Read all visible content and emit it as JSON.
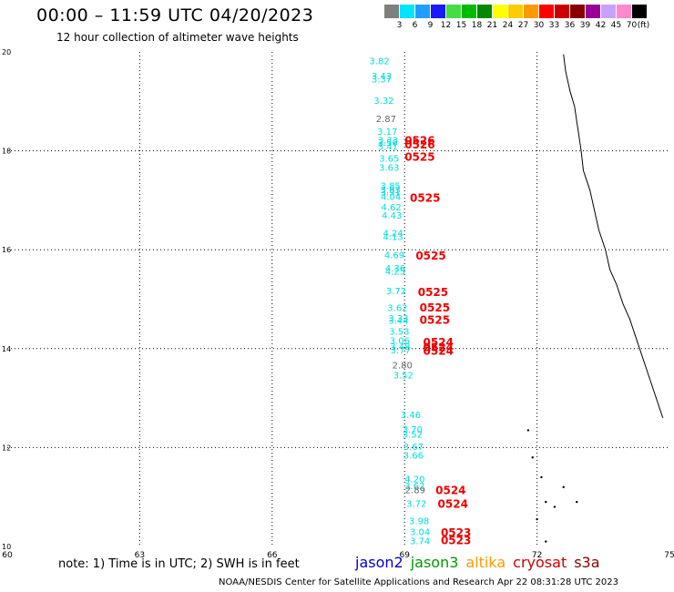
{
  "header": {
    "title": "00:00 – 11:59 UTC 04/20/2023",
    "subtitle": "12 hour collection of altimeter wave heights"
  },
  "legend": {
    "unit": "(ft)",
    "bins": [
      {
        "label": "3",
        "color": "#7f7f7f"
      },
      {
        "label": "6",
        "color": "#00e5ff"
      },
      {
        "label": "9",
        "color": "#1e9fff"
      },
      {
        "label": "12",
        "color": "#1a1aff"
      },
      {
        "label": "15",
        "color": "#44dd44"
      },
      {
        "label": "18",
        "color": "#00bb00"
      },
      {
        "label": "21",
        "color": "#008800"
      },
      {
        "label": "24",
        "color": "#ffff00"
      },
      {
        "label": "27",
        "color": "#ffcc00"
      },
      {
        "label": "30",
        "color": "#ff9900"
      },
      {
        "label": "33",
        "color": "#ff0000"
      },
      {
        "label": "36",
        "color": "#cc0000"
      },
      {
        "label": "39",
        "color": "#880000"
      },
      {
        "label": "42",
        "color": "#990099"
      },
      {
        "label": "45",
        "color": "#c8a0ff"
      },
      {
        "label": "70",
        "color": "#ff88cc"
      },
      {
        "label": "",
        "color": "#000000"
      }
    ]
  },
  "map": {
    "lon_range": [
      60,
      75
    ],
    "lat_range": [
      10,
      20
    ],
    "x_ticks": [
      "60",
      "63",
      "66",
      "69",
      "72",
      "75"
    ],
    "y_ticks": [
      "10",
      "12",
      "14",
      "16",
      "18",
      "20"
    ],
    "grid": "dotted",
    "colors": {
      "cyan": "#00dddd",
      "gray": "#666666",
      "red": "#ee0000"
    },
    "swh_labels": [
      {
        "text": "3.82",
        "lon": 68.2,
        "lat": 19.75,
        "color": "cyan"
      },
      {
        "text": "3.43",
        "lon": 68.25,
        "lat": 19.45,
        "color": "cyan"
      },
      {
        "text": "3.37",
        "lon": 68.25,
        "lat": 19.38,
        "color": "cyan"
      },
      {
        "text": "3.32",
        "lon": 68.3,
        "lat": 18.95,
        "color": "cyan"
      },
      {
        "text": "2.87",
        "lon": 68.35,
        "lat": 18.58,
        "color": "gray"
      },
      {
        "text": "3.17",
        "lon": 68.38,
        "lat": 18.32,
        "color": "cyan"
      },
      {
        "text": "3.33",
        "lon": 68.39,
        "lat": 18.15,
        "color": "cyan"
      },
      {
        "text": "3.56",
        "lon": 68.39,
        "lat": 18.1,
        "color": "cyan"
      },
      {
        "text": "3.41",
        "lon": 68.39,
        "lat": 18.02,
        "color": "cyan"
      },
      {
        "text": "3.65",
        "lon": 68.42,
        "lat": 17.78,
        "color": "cyan"
      },
      {
        "text": "3.63",
        "lon": 68.42,
        "lat": 17.6,
        "color": "cyan"
      },
      {
        "text": "3.85",
        "lon": 68.45,
        "lat": 17.23,
        "color": "cyan"
      },
      {
        "text": "3.93",
        "lon": 68.45,
        "lat": 17.15,
        "color": "cyan"
      },
      {
        "text": "3.91",
        "lon": 68.45,
        "lat": 17.1,
        "color": "cyan"
      },
      {
        "text": "4.04",
        "lon": 68.46,
        "lat": 17.01,
        "color": "cyan"
      },
      {
        "text": "4.62",
        "lon": 68.47,
        "lat": 16.8,
        "color": "cyan"
      },
      {
        "text": "4.43",
        "lon": 68.48,
        "lat": 16.63,
        "color": "cyan"
      },
      {
        "text": "4.24",
        "lon": 68.51,
        "lat": 16.27,
        "color": "cyan"
      },
      {
        "text": "4.13",
        "lon": 68.51,
        "lat": 16.2,
        "color": "cyan"
      },
      {
        "text": "4.69",
        "lon": 68.54,
        "lat": 15.83,
        "color": "cyan"
      },
      {
        "text": "4.36",
        "lon": 68.56,
        "lat": 15.56,
        "color": "cyan"
      },
      {
        "text": "4.25",
        "lon": 68.56,
        "lat": 15.5,
        "color": "cyan"
      },
      {
        "text": "3.72",
        "lon": 68.58,
        "lat": 15.1,
        "color": "cyan"
      },
      {
        "text": "3.62",
        "lon": 68.61,
        "lat": 14.76,
        "color": "cyan"
      },
      {
        "text": "3.33",
        "lon": 68.63,
        "lat": 14.55,
        "color": "cyan"
      },
      {
        "text": "3.44",
        "lon": 68.63,
        "lat": 14.5,
        "color": "cyan"
      },
      {
        "text": "3.53",
        "lon": 68.65,
        "lat": 14.28,
        "color": "cyan"
      },
      {
        "text": "3.06",
        "lon": 68.66,
        "lat": 14.1,
        "color": "cyan"
      },
      {
        "text": "3.48",
        "lon": 68.67,
        "lat": 13.98,
        "color": "cyan"
      },
      {
        "text": "3.77",
        "lon": 68.68,
        "lat": 13.9,
        "color": "cyan"
      },
      {
        "text": "2.80",
        "lon": 68.72,
        "lat": 13.6,
        "color": "gray"
      },
      {
        "text": "3.52",
        "lon": 68.74,
        "lat": 13.4,
        "color": "cyan"
      },
      {
        "text": "3.46",
        "lon": 68.91,
        "lat": 12.6,
        "color": "cyan"
      },
      {
        "text": "3.70",
        "lon": 68.95,
        "lat": 12.3,
        "color": "cyan"
      },
      {
        "text": "3.52",
        "lon": 68.95,
        "lat": 12.2,
        "color": "cyan"
      },
      {
        "text": "3.67",
        "lon": 68.97,
        "lat": 11.95,
        "color": "cyan"
      },
      {
        "text": "3.66",
        "lon": 68.97,
        "lat": 11.78,
        "color": "cyan"
      },
      {
        "text": "4.20",
        "lon": 69.0,
        "lat": 11.3,
        "color": "cyan"
      },
      {
        "text": "3.62",
        "lon": 69.0,
        "lat": 11.16,
        "color": "cyan"
      },
      {
        "text": "2.89",
        "lon": 69.01,
        "lat": 11.08,
        "color": "gray"
      },
      {
        "text": "3.72",
        "lon": 69.04,
        "lat": 10.8,
        "color": "cyan"
      },
      {
        "text": "3.98",
        "lon": 69.1,
        "lat": 10.45,
        "color": "cyan"
      },
      {
        "text": "3.04",
        "lon": 69.12,
        "lat": 10.23,
        "color": "cyan"
      },
      {
        "text": "3.74",
        "lon": 69.12,
        "lat": 10.05,
        "color": "cyan"
      }
    ],
    "time_labels": [
      {
        "text": "0526",
        "lon": 69.0,
        "lat": 18.13
      },
      {
        "text": "0526",
        "lon": 69.0,
        "lat": 18.05
      },
      {
        "text": "0525",
        "lon": 69.0,
        "lat": 17.8
      },
      {
        "text": "0525",
        "lon": 69.12,
        "lat": 16.97
      },
      {
        "text": "0525",
        "lon": 69.25,
        "lat": 15.8
      },
      {
        "text": "0525",
        "lon": 69.3,
        "lat": 15.06
      },
      {
        "text": "0525",
        "lon": 69.34,
        "lat": 14.75
      },
      {
        "text": "0525",
        "lon": 69.34,
        "lat": 14.5
      },
      {
        "text": "0524",
        "lon": 69.42,
        "lat": 14.05
      },
      {
        "text": "0524",
        "lon": 69.42,
        "lat": 13.95
      },
      {
        "text": "0524",
        "lon": 69.42,
        "lat": 13.88
      },
      {
        "text": "0524",
        "lon": 69.7,
        "lat": 11.06
      },
      {
        "text": "0524",
        "lon": 69.75,
        "lat": 10.78
      },
      {
        "text": "0523",
        "lon": 69.82,
        "lat": 10.2
      },
      {
        "text": "0523",
        "lon": 69.82,
        "lat": 10.05
      }
    ]
  },
  "footer": {
    "note": "note: 1) Time is in UTC; 2) SWH is in feet",
    "satellites": [
      {
        "name": "jason2",
        "color": "#0000cc"
      },
      {
        "name": "jason3",
        "color": "#009900"
      },
      {
        "name": "altika",
        "color": "#ff9900"
      },
      {
        "name": "cryosat",
        "color": "#cc0000"
      },
      {
        "name": "s3a",
        "color": "#880000"
      }
    ],
    "credit": "NOAA/NESDIS Center for Satellite Applications and Research   Apr 22 08:31:28 UTC 2023"
  }
}
